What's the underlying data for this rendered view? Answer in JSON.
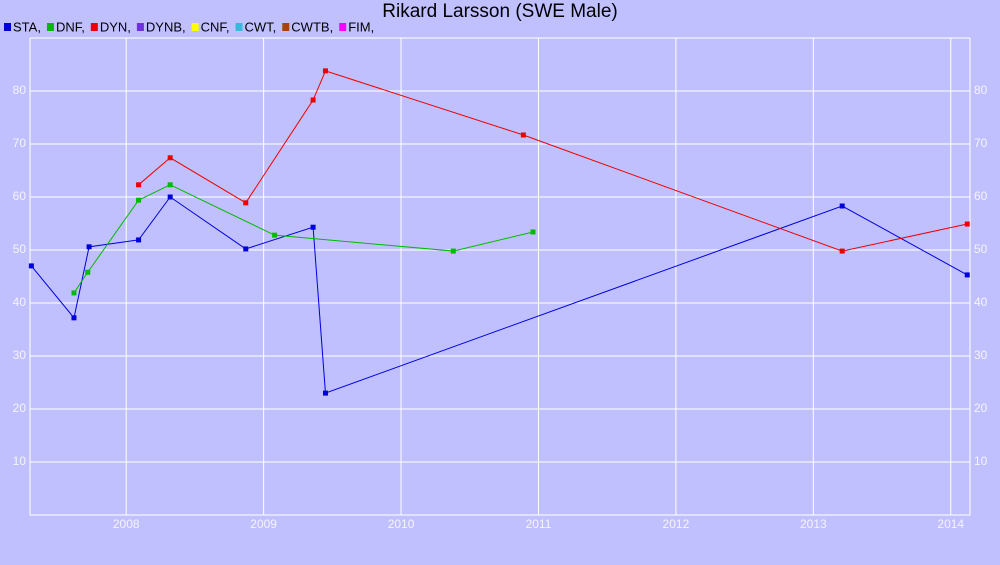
{
  "chart_data": {
    "type": "line",
    "title": "Rikard Larsson (SWE Male)",
    "xlim": [
      2007.3,
      2014.14
    ],
    "xticks": [
      2008,
      2009,
      2010,
      2011,
      2012,
      2013,
      2014
    ],
    "ylim": [
      0,
      90
    ],
    "yticks": [
      10,
      20,
      30,
      40,
      50,
      60,
      70,
      80
    ],
    "grid": true,
    "series": [
      {
        "name": "STA,",
        "color": "#0000dd",
        "x": [
          2007.31,
          2007.62,
          2007.73,
          2008.09,
          2008.32,
          2008.87,
          2009.36,
          2009.45,
          2013.21,
          2014.12
        ],
        "values": [
          47.0,
          37.2,
          50.6,
          51.9,
          60.0,
          50.2,
          54.3,
          23.0,
          58.3,
          45.3
        ]
      },
      {
        "name": "DNF,",
        "color": "#00bb00",
        "x": [
          2007.62,
          2007.72,
          2008.09,
          2008.32,
          2009.08,
          2010.38,
          2010.96
        ],
        "values": [
          41.9,
          45.8,
          59.4,
          62.3,
          52.8,
          49.8,
          53.4
        ]
      },
      {
        "name": "DYN,",
        "color": "#ee0000",
        "x": [
          2008.09,
          2008.32,
          2008.87,
          2009.36,
          2009.45,
          2010.89,
          2013.21,
          2014.12
        ],
        "values": [
          62.3,
          67.4,
          58.9,
          78.3,
          83.8,
          71.7,
          49.8,
          54.9
        ]
      },
      {
        "name": "DYNB,",
        "color": "#7030e0",
        "x": [],
        "values": []
      },
      {
        "name": "CNF,",
        "color": "#ffff00",
        "x": [],
        "values": []
      },
      {
        "name": "CWT,",
        "color": "#33bbdd",
        "x": [],
        "values": []
      },
      {
        "name": "CWTB,",
        "color": "#aa4400",
        "x": [],
        "values": []
      },
      {
        "name": "FIM,",
        "color": "#ff00ff",
        "x": [],
        "values": []
      }
    ]
  }
}
